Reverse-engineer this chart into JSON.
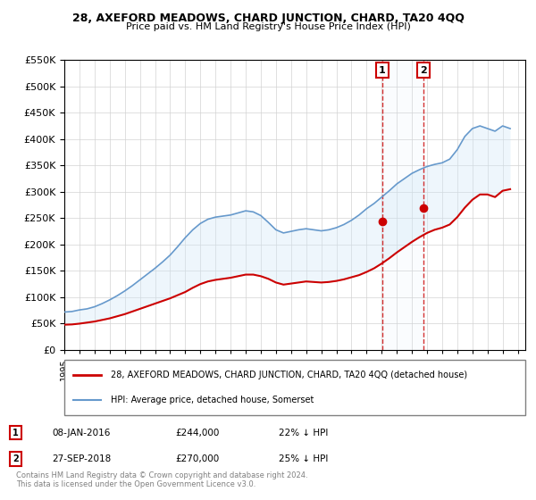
{
  "title": "28, AXEFORD MEADOWS, CHARD JUNCTION, CHARD, TA20 4QQ",
  "subtitle": "Price paid vs. HM Land Registry's House Price Index (HPI)",
  "legend_line1": "28, AXEFORD MEADOWS, CHARD JUNCTION, CHARD, TA20 4QQ (detached house)",
  "legend_line2": "HPI: Average price, detached house, Somerset",
  "point1_label": "1",
  "point1_date": "08-JAN-2016",
  "point1_price": "£244,000",
  "point1_pct": "22% ↓ HPI",
  "point2_label": "2",
  "point2_date": "27-SEP-2018",
  "point2_price": "£270,000",
  "point2_pct": "25% ↓ HPI",
  "footnote": "Contains HM Land Registry data © Crown copyright and database right 2024.\nThis data is licensed under the Open Government Licence v3.0.",
  "red_color": "#cc0000",
  "blue_color": "#6699cc",
  "shade_color": "#d0e8f8",
  "point1_x": 2016.04,
  "point1_y": 244000,
  "point2_x": 2018.75,
  "point2_y": 270000,
  "ylim": [
    0,
    550000
  ],
  "xlim": [
    1995,
    2025.5
  ],
  "hpi_x": [
    1995,
    1995.5,
    1996,
    1996.5,
    1997,
    1997.5,
    1998,
    1998.5,
    1999,
    1999.5,
    2000,
    2000.5,
    2001,
    2001.5,
    2002,
    2002.5,
    2003,
    2003.5,
    2004,
    2004.5,
    2005,
    2005.5,
    2006,
    2006.5,
    2007,
    2007.5,
    2008,
    2008.5,
    2009,
    2009.5,
    2010,
    2010.5,
    2011,
    2011.5,
    2012,
    2012.5,
    2013,
    2013.5,
    2014,
    2014.5,
    2015,
    2015.5,
    2016,
    2016.5,
    2017,
    2017.5,
    2018,
    2018.5,
    2019,
    2019.5,
    2020,
    2020.5,
    2021,
    2021.5,
    2022,
    2022.5,
    2023,
    2023.5,
    2024,
    2024.5
  ],
  "hpi_y": [
    72000,
    73000,
    76000,
    78000,
    82000,
    88000,
    95000,
    103000,
    112000,
    122000,
    133000,
    144000,
    155000,
    167000,
    180000,
    196000,
    213000,
    228000,
    240000,
    248000,
    252000,
    254000,
    256000,
    260000,
    264000,
    262000,
    255000,
    242000,
    228000,
    222000,
    225000,
    228000,
    230000,
    228000,
    226000,
    228000,
    232000,
    238000,
    246000,
    256000,
    268000,
    278000,
    290000,
    302000,
    315000,
    325000,
    335000,
    342000,
    348000,
    352000,
    355000,
    362000,
    380000,
    405000,
    420000,
    425000,
    420000,
    415000,
    425000,
    420000
  ],
  "red_x": [
    1995,
    1995.5,
    1996,
    1996.5,
    1997,
    1997.5,
    1998,
    1998.5,
    1999,
    1999.5,
    2000,
    2000.5,
    2001,
    2001.5,
    2002,
    2002.5,
    2003,
    2003.5,
    2004,
    2004.5,
    2005,
    2005.5,
    2006,
    2006.5,
    2007,
    2007.5,
    2008,
    2008.5,
    2009,
    2009.5,
    2010,
    2010.5,
    2011,
    2011.5,
    2012,
    2012.5,
    2013,
    2013.5,
    2014,
    2014.5,
    2015,
    2015.5,
    2016,
    2016.5,
    2017,
    2017.5,
    2018,
    2018.5,
    2019,
    2019.5,
    2020,
    2020.5,
    2021,
    2021.5,
    2022,
    2022.5,
    2023,
    2023.5,
    2024,
    2024.5
  ],
  "red_y": [
    48000,
    48500,
    50000,
    52000,
    54000,
    57000,
    60000,
    64000,
    68000,
    73000,
    78000,
    83000,
    88000,
    93000,
    98000,
    104000,
    110000,
    118000,
    125000,
    130000,
    133000,
    135000,
    137000,
    140000,
    143000,
    143000,
    140000,
    135000,
    128000,
    124000,
    126000,
    128000,
    130000,
    129000,
    128000,
    129000,
    131000,
    134000,
    138000,
    142000,
    148000,
    155000,
    164000,
    174000,
    185000,
    195000,
    205000,
    214000,
    222000,
    228000,
    232000,
    238000,
    252000,
    270000,
    285000,
    295000,
    295000,
    290000,
    302000,
    305000
  ]
}
